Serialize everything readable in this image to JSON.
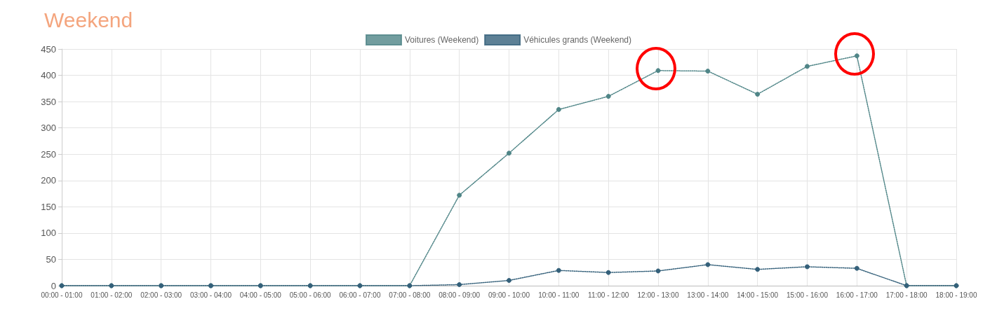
{
  "chart_data": {
    "type": "line",
    "title": "Weekend",
    "categories": [
      "00:00 - 01:00",
      "01:00 - 02:00",
      "02:00 - 03:00",
      "03:00 - 04:00",
      "04:00 - 05:00",
      "05:00 - 06:00",
      "06:00 - 07:00",
      "07:00 - 08:00",
      "08:00 - 09:00",
      "09:00 - 10:00",
      "10:00 - 11:00",
      "11:00 - 12:00",
      "12:00 - 13:00",
      "13:00 - 14:00",
      "14:00 - 15:00",
      "15:00 - 16:00",
      "16:00 - 17:00",
      "17:00 - 18:00",
      "18:00 - 19:00"
    ],
    "series": [
      {
        "name": "Voitures (Weekend)",
        "color": "#4f8587",
        "values": [
          0,
          0,
          0,
          0,
          0,
          0,
          0,
          0,
          172,
          252,
          335,
          360,
          409,
          408,
          364,
          417,
          437,
          0,
          0
        ]
      },
      {
        "name": "Véhicules grands (Weekend)",
        "color": "#34607a",
        "values": [
          0,
          0,
          0,
          0,
          0,
          0,
          0,
          0,
          2,
          10,
          29,
          25,
          28,
          40,
          31,
          36,
          33,
          0,
          0
        ]
      }
    ],
    "ylim": [
      0,
      450
    ],
    "yticks": [
      0,
      50,
      100,
      150,
      200,
      250,
      300,
      350,
      400,
      450
    ],
    "grid": true,
    "legend": "top",
    "marker": "circle",
    "line_style": "dotted"
  }
}
